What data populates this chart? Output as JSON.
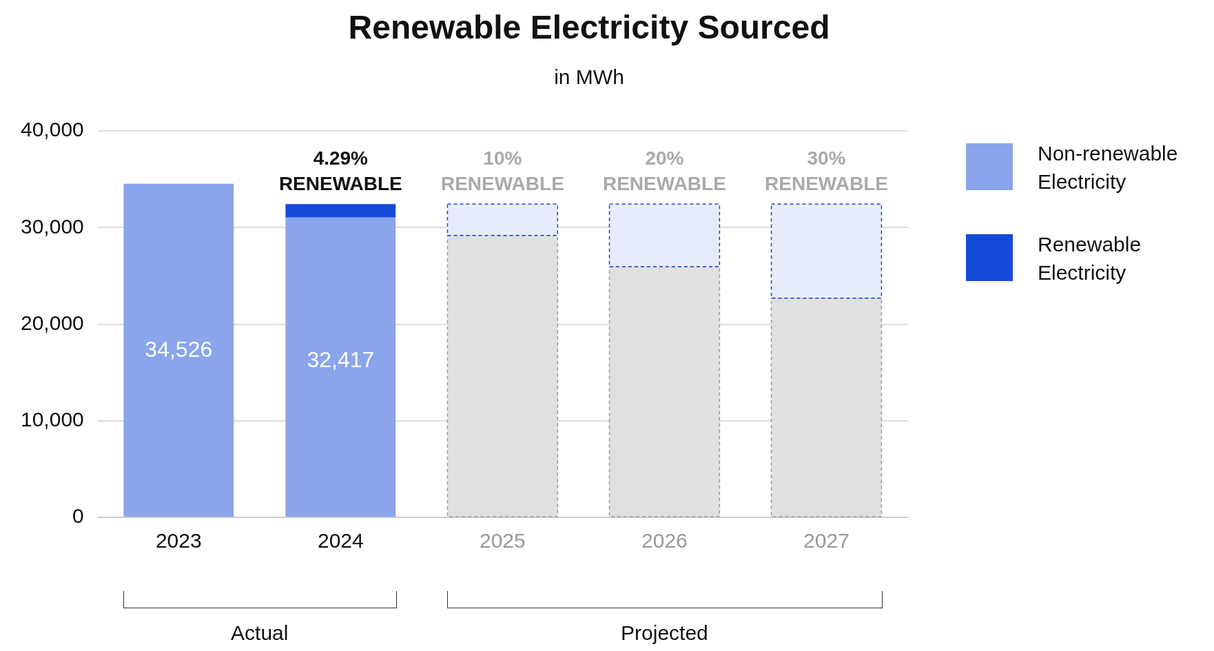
{
  "chart_data": {
    "type": "bar",
    "title": "Renewable Electricity Sourced",
    "subtitle": "in MWh",
    "categories": [
      "2023",
      "2024",
      "2025",
      "2026",
      "2027"
    ],
    "stacked": true,
    "series": [
      {
        "name": "Non-renewable Electricity",
        "color": "#8aa5ec",
        "colors": [
          "#8aa5ec",
          "#8aa5ec",
          "#e0e0e0",
          "#e0e0e0",
          "#e0e0e0"
        ],
        "values": [
          34526,
          31026,
          29175,
          25934,
          22692
        ]
      },
      {
        "name": "Renewable Electricity",
        "color": "#1449d8",
        "colors": [
          "#1449d8",
          "#1449d8",
          "#e6ecf9",
          "#e6ecf9",
          "#e6ecf9"
        ],
        "values": [
          0,
          1391,
          3242,
          6483,
          9725
        ]
      }
    ],
    "totals": [
      "34,526",
      "32,417",
      null,
      null,
      null
    ],
    "ylim": [
      0,
      40000
    ],
    "yticks": [
      {
        "value": 0,
        "label": "0"
      },
      {
        "value": 10000,
        "label": "10,000"
      },
      {
        "value": 20000,
        "label": "20,000"
      },
      {
        "value": 30000,
        "label": "30,000"
      },
      {
        "value": 40000,
        "label": "40,000"
      }
    ],
    "grid": "y",
    "legend": "right",
    "annotations": [
      {
        "text": "4.29%\nRENEWABLE",
        "x": "2024",
        "y": 32417
      },
      {
        "text": "10%\nRENEWABLE",
        "x": "2025",
        "y": 32417
      },
      {
        "text": "20%\nRENEWABLE",
        "x": "2026",
        "y": 32417
      },
      {
        "text": "30%\nRENEWABLE",
        "x": "2027",
        "y": 32417
      },
      "Actual",
      "Projected"
    ]
  }
}
